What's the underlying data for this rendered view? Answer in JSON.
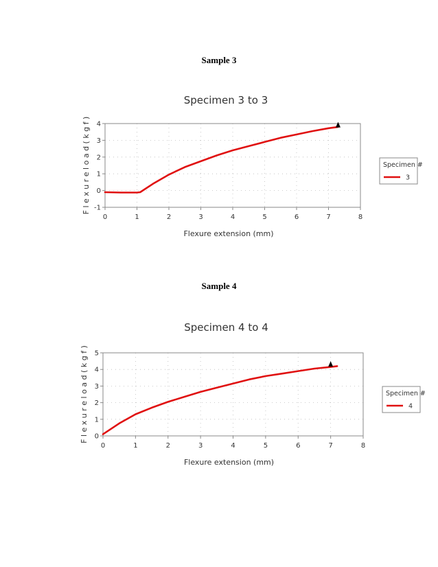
{
  "sections": [
    {
      "heading": "Sample 3"
    },
    {
      "heading": "Sample 4"
    }
  ],
  "colors": {
    "series": "#e01010",
    "frame": "#888888",
    "grid": "#bbbbbb",
    "marker": "#000000"
  },
  "chart_data": [
    {
      "type": "line",
      "title": "Specimen 3 to 3",
      "xlabel": "Flexure extension (mm)",
      "ylabel": "F l e x u r e   l o a d   ( k g f )",
      "xlim": [
        0,
        8
      ],
      "ylim": [
        -1,
        4
      ],
      "xticks": [
        "0",
        "1",
        "2",
        "3",
        "4",
        "5",
        "6",
        "7",
        "8"
      ],
      "yticks": [
        "-1",
        "0",
        "1",
        "2",
        "3",
        "4"
      ],
      "grid": true,
      "legend": {
        "title": "Specimen #",
        "placement": "right"
      },
      "series": [
        {
          "name": "3",
          "points": [
            [
              0,
              -0.1
            ],
            [
              0.5,
              -0.12
            ],
            [
              1,
              -0.12
            ],
            [
              1.1,
              -0.1
            ],
            [
              1.5,
              0.4
            ],
            [
              2,
              0.95
            ],
            [
              2.5,
              1.4
            ],
            [
              3,
              1.75
            ],
            [
              3.5,
              2.1
            ],
            [
              4,
              2.4
            ],
            [
              4.5,
              2.65
            ],
            [
              5,
              2.9
            ],
            [
              5.5,
              3.15
            ],
            [
              6,
              3.35
            ],
            [
              6.5,
              3.55
            ],
            [
              7,
              3.72
            ],
            [
              7.3,
              3.8
            ]
          ]
        }
      ],
      "break_marker": [
        7.3,
        3.85
      ]
    },
    {
      "type": "line",
      "title": "Specimen 4 to 4",
      "xlabel": "Flexure extension (mm)",
      "ylabel": "F l e x u r e   l o a d   ( k g f )",
      "xlim": [
        0,
        8
      ],
      "ylim": [
        0,
        5
      ],
      "xticks": [
        "0",
        "1",
        "2",
        "3",
        "4",
        "5",
        "6",
        "7",
        "8"
      ],
      "yticks": [
        "0",
        "1",
        "2",
        "3",
        "4",
        "5"
      ],
      "grid": true,
      "legend": {
        "title": "Specimen #",
        "placement": "right"
      },
      "series": [
        {
          "name": "4",
          "points": [
            [
              0,
              0.1
            ],
            [
              0.5,
              0.75
            ],
            [
              1,
              1.3
            ],
            [
              1.5,
              1.7
            ],
            [
              2,
              2.05
            ],
            [
              2.5,
              2.35
            ],
            [
              3,
              2.65
            ],
            [
              3.5,
              2.9
            ],
            [
              4,
              3.15
            ],
            [
              4.5,
              3.4
            ],
            [
              5,
              3.6
            ],
            [
              5.5,
              3.75
            ],
            [
              6,
              3.9
            ],
            [
              6.5,
              4.05
            ],
            [
              7,
              4.15
            ],
            [
              7.2,
              4.2
            ]
          ]
        }
      ],
      "break_marker": [
        7.0,
        4.25
      ]
    }
  ]
}
